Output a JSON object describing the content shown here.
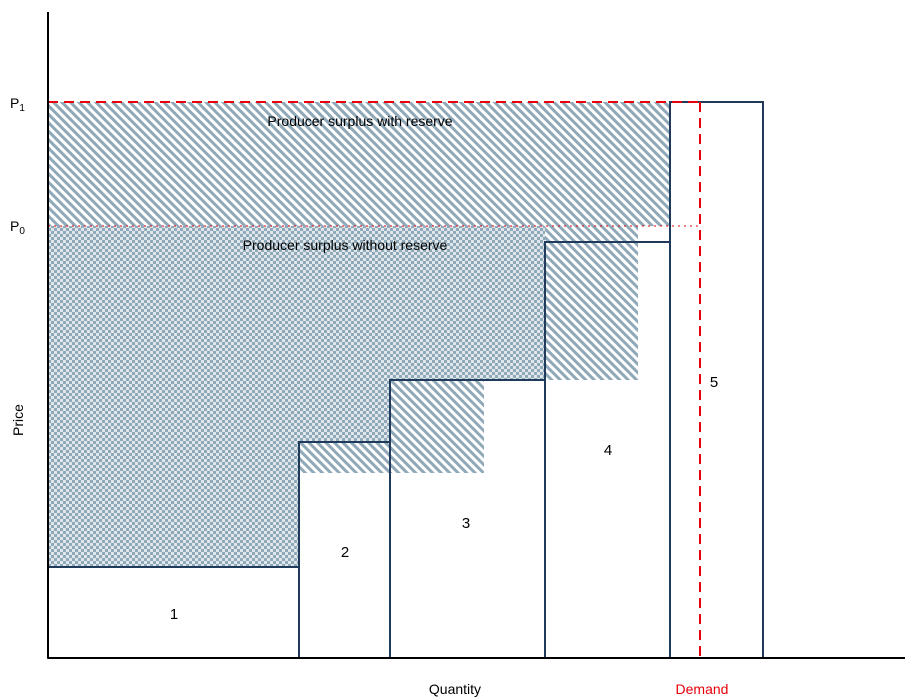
{
  "axes": {
    "y_label": "Price",
    "x_label": "Quantity",
    "demand_label": "Demand",
    "p1_label": "P",
    "p1_sub": "1",
    "p0_label": "P",
    "p0_sub": "0"
  },
  "regions": {
    "with_reserve": "Producer surplus with reserve",
    "without_reserve": "Producer surplus without reserve"
  },
  "blocks": [
    {
      "label": "1"
    },
    {
      "label": "2"
    },
    {
      "label": "3"
    },
    {
      "label": "4"
    },
    {
      "label": "5"
    }
  ],
  "colors": {
    "hatch": "#8fa9b8",
    "outline": "#1f3a5a",
    "demand": "#e8000b",
    "axis": "#000000"
  }
}
